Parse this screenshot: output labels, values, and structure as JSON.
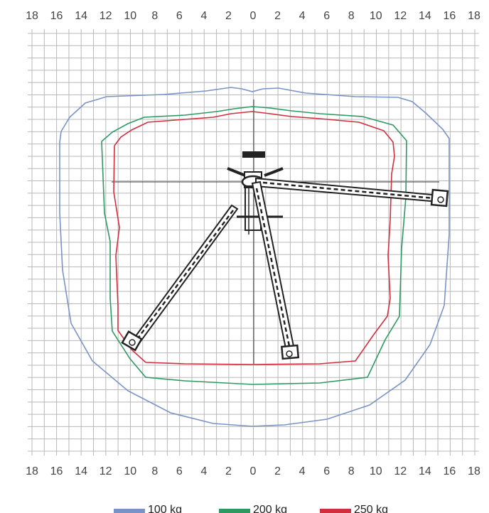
{
  "diagram": {
    "x_ticks": [
      "18",
      "16",
      "14",
      "12",
      "10",
      "8",
      "6",
      "4",
      "2",
      "0",
      "2",
      "4",
      "6",
      "8",
      "10",
      "12",
      "14",
      "16",
      "18"
    ],
    "legend": [
      {
        "label": "100 kg",
        "color": "#7a93c6"
      },
      {
        "label": "200 kg",
        "color": "#2e9a63"
      },
      {
        "label": "250 kg",
        "color": "#d12f3d"
      }
    ],
    "colors": {
      "grid": "#b8b8b8",
      "axes": "#333333",
      "machine": "#222222"
    }
  }
}
